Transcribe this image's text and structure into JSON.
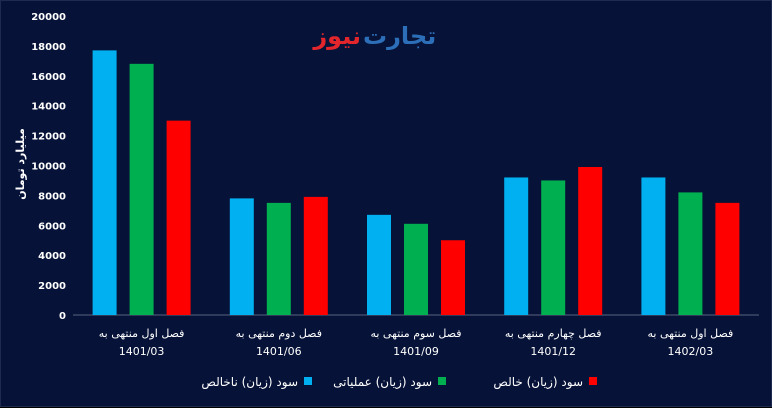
{
  "logo": {
    "part_red": "نیوز",
    "part_blue": "تجارت"
  },
  "chart_data": {
    "type": "bar",
    "title": "",
    "xlabel": "",
    "ylabel": "میلیارد تومان",
    "ylim": [
      0,
      20000
    ],
    "y_ticks": [
      {
        "value": 0,
        "label": "0"
      },
      {
        "value": 2000,
        "label": "2000"
      },
      {
        "value": 4000,
        "label": "4000"
      },
      {
        "value": 6000,
        "label": "6000"
      },
      {
        "value": 8000,
        "label": "8000"
      },
      {
        "value": 10000,
        "label": "10000"
      },
      {
        "value": 12000,
        "label": "12000"
      },
      {
        "value": 14000,
        "label": "14000"
      },
      {
        "value": 16000,
        "label": "16000"
      },
      {
        "value": 18000,
        "label": "18000"
      },
      {
        "value": 20000,
        "label": "20000"
      }
    ],
    "grid": false,
    "legend_position": "bottom",
    "categories": [
      {
        "line1": "فصل اول منتهی به",
        "line2": "1401/03"
      },
      {
        "line1": "فصل دوم منتهی به",
        "line2": "1401/06"
      },
      {
        "line1": "فصل سوم منتهی به",
        "line2": "1401/09"
      },
      {
        "line1": "فصل چهارم منتهی به",
        "line2": "1401/12"
      },
      {
        "line1": "فصل اول منتهی به",
        "line2": "1402/03"
      }
    ],
    "series": [
      {
        "name": "سود (زیان) ناخالص",
        "color": "#00b0f0",
        "values": [
          17700,
          7800,
          6700,
          9200,
          9200
        ]
      },
      {
        "name": "سود (زیان) عملیاتی",
        "color": "#00b050",
        "values": [
          16800,
          7500,
          6100,
          9000,
          8200
        ]
      },
      {
        "name": "سود (زیان) خالص",
        "color": "#ff0000",
        "values": [
          13000,
          7900,
          5000,
          9900,
          7500
        ]
      }
    ]
  }
}
